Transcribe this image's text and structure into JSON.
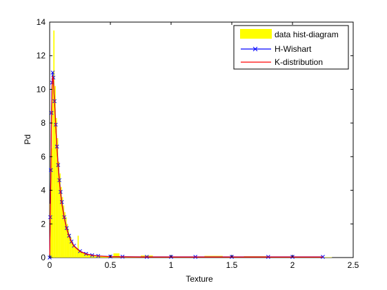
{
  "chart_data": {
    "type": "bar",
    "xlabel": "Texture",
    "ylabel": "Pd",
    "xlim": [
      0,
      2.5
    ],
    "ylim": [
      0,
      14
    ],
    "xticks": [
      0,
      0.5,
      1,
      1.5,
      2,
      2.5
    ],
    "xtick_labels": [
      "0",
      "0.5",
      "1",
      "1.5",
      "2",
      "2.5"
    ],
    "yticks": [
      0,
      2,
      4,
      6,
      8,
      10,
      12,
      14
    ],
    "ytick_labels": [
      "0",
      "2",
      "4",
      "6",
      "8",
      "10",
      "12",
      "14"
    ],
    "grid": false,
    "legend_position": "top-right",
    "legend": [
      "data hist-diagram",
      "H-Wishart",
      "K-distribution"
    ],
    "colors": {
      "histogram": "#ffff00",
      "h_wishart": "#0000ff",
      "k_distribution": "#ff0000",
      "axes": "#000000"
    },
    "series": [
      {
        "name": "data hist-diagram",
        "kind": "histogram",
        "x": [
          0.005,
          0.015,
          0.025,
          0.035,
          0.045,
          0.055,
          0.065,
          0.075,
          0.085,
          0.095,
          0.105,
          0.115,
          0.125,
          0.135,
          0.145,
          0.155,
          0.165,
          0.175,
          0.185,
          0.195,
          0.205,
          0.215,
          0.225,
          0.235,
          0.245,
          0.26,
          0.28,
          0.3,
          0.32,
          0.34,
          0.36,
          0.38,
          0.4,
          0.45,
          0.5,
          0.55,
          0.6,
          0.7,
          0.8,
          0.9,
          1.0,
          1.1,
          1.2,
          1.35,
          1.5,
          1.7,
          1.9,
          2.1,
          2.25
        ],
        "values": [
          3.2,
          6.5,
          10.5,
          13.5,
          10.2,
          8.3,
          7.1,
          5.7,
          5.0,
          4.2,
          3.6,
          3.1,
          2.7,
          2.4,
          2.0,
          1.7,
          1.4,
          1.2,
          1.0,
          0.8,
          0.7,
          0.6,
          0.5,
          1.3,
          0.45,
          0.35,
          0.3,
          0.25,
          0.2,
          0.18,
          0.15,
          0.12,
          0.1,
          0.08,
          0.06,
          0.25,
          0.05,
          0.04,
          0.12,
          0.03,
          0.03,
          0.03,
          0.02,
          0.1,
          0.02,
          0.08,
          0.02,
          0.02,
          0.02
        ]
      },
      {
        "name": "H-Wishart",
        "kind": "line-with-markers",
        "x": [
          0.0,
          0.005,
          0.01,
          0.015,
          0.02,
          0.025,
          0.03,
          0.04,
          0.05,
          0.06,
          0.07,
          0.08,
          0.09,
          0.1,
          0.12,
          0.14,
          0.16,
          0.18,
          0.2,
          0.25,
          0.3,
          0.35,
          0.4,
          0.5,
          0.6,
          0.8,
          1.0,
          1.2,
          1.5,
          1.8,
          2.0,
          2.25
        ],
        "values": [
          0.0,
          2.4,
          5.2,
          8.6,
          10.4,
          11.0,
          10.7,
          9.3,
          7.9,
          6.6,
          5.5,
          4.6,
          3.9,
          3.3,
          2.4,
          1.75,
          1.3,
          0.95,
          0.7,
          0.38,
          0.22,
          0.14,
          0.1,
          0.06,
          0.05,
          0.04,
          0.04,
          0.04,
          0.04,
          0.04,
          0.04,
          0.04
        ]
      },
      {
        "name": "K-distribution",
        "kind": "line",
        "x": [
          0.0,
          0.005,
          0.01,
          0.015,
          0.02,
          0.025,
          0.03,
          0.04,
          0.05,
          0.06,
          0.07,
          0.08,
          0.09,
          0.1,
          0.12,
          0.14,
          0.16,
          0.18,
          0.2,
          0.25,
          0.3,
          0.35,
          0.4,
          0.5,
          0.6,
          0.8,
          1.0,
          1.2,
          1.5,
          1.8,
          2.0,
          2.25
        ],
        "values": [
          0.0,
          2.2,
          5.0,
          8.3,
          10.2,
          10.8,
          10.6,
          9.2,
          7.8,
          6.5,
          5.4,
          4.5,
          3.8,
          3.2,
          2.35,
          1.7,
          1.25,
          0.92,
          0.68,
          0.36,
          0.21,
          0.13,
          0.09,
          0.05,
          0.04,
          0.03,
          0.03,
          0.03,
          0.03,
          0.03,
          0.03,
          0.03
        ]
      }
    ]
  }
}
